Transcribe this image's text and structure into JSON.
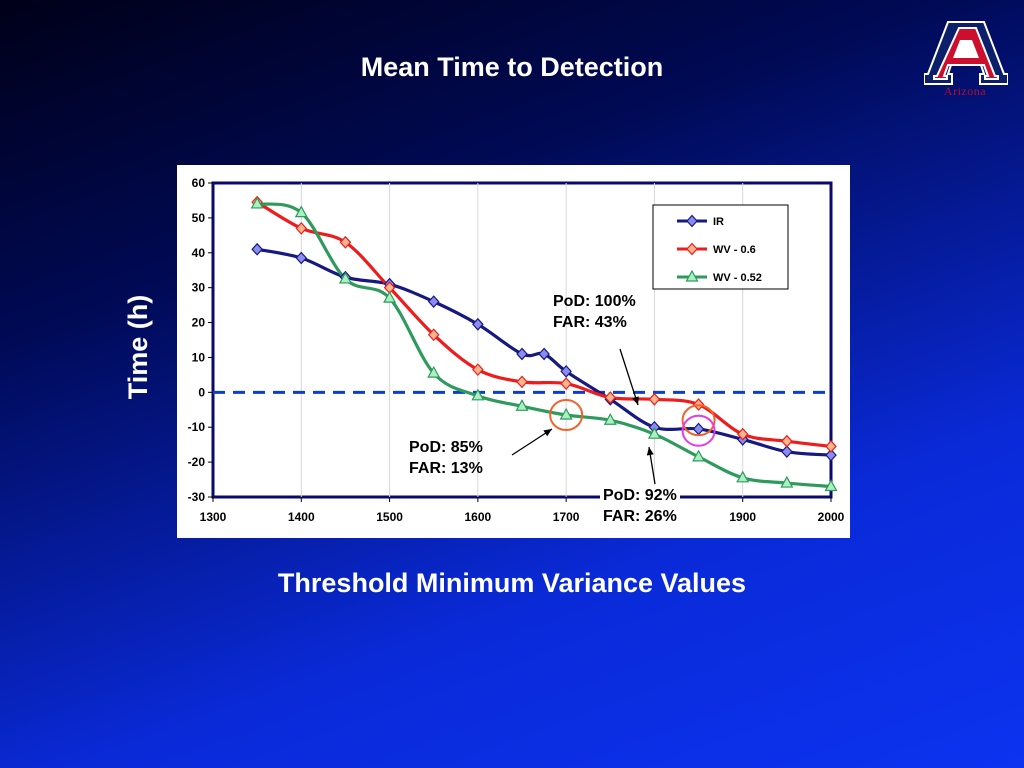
{
  "slide": {
    "title": "Mean Time to Detection",
    "logo_text": "Arizona"
  },
  "colors": {
    "ir": "#16197f",
    "wv06": "#ee1c1c",
    "wv052": "#2e9a5c",
    "zero_line": "#0b3fc8",
    "circle_orange": "#f0622a",
    "circle_magenta": "#e23ce6"
  },
  "chart_data": {
    "type": "line",
    "title": "Mean Time to Detection",
    "xlabel": "Threshold Minimum Variance Values",
    "ylabel": "Time (h)",
    "xlim": [
      1300,
      2000
    ],
    "ylim": [
      -30,
      60
    ],
    "x_ticks": [
      "1300",
      "1400",
      "1500",
      "1600",
      "1700",
      "1800",
      "1900",
      "2000"
    ],
    "y_ticks": [
      "60",
      "50",
      "40",
      "30",
      "20",
      "10",
      "0",
      "-10",
      "-20",
      "-30"
    ],
    "grid": true,
    "legend_position": "top-right",
    "reference_line": {
      "y": 0,
      "style": "dashed"
    },
    "series": [
      {
        "name": "IR",
        "marker": "diamond",
        "x": [
          1350,
          1400,
          1450,
          1500,
          1550,
          1600,
          1650,
          1675,
          1700,
          1750,
          1800,
          1850,
          1900,
          1950,
          2000
        ],
        "y": [
          41,
          38.5,
          33,
          31,
          26,
          19.5,
          11,
          11,
          6,
          -2,
          -10,
          -10.5,
          -13.5,
          -17,
          -18
        ]
      },
      {
        "name": "WV - 0.6",
        "marker": "diamond",
        "x": [
          1350,
          1400,
          1450,
          1500,
          1550,
          1600,
          1650,
          1700,
          1750,
          1800,
          1850,
          1900,
          1950,
          2000
        ],
        "y": [
          54.5,
          47,
          43,
          30,
          16.5,
          6.5,
          3,
          2.5,
          -1.5,
          -2,
          -3.5,
          -12,
          -14,
          -15.5
        ]
      },
      {
        "name": "WV - 0.52",
        "marker": "triangle",
        "x": [
          1350,
          1400,
          1450,
          1500,
          1550,
          1600,
          1650,
          1700,
          1750,
          1800,
          1850,
          1900,
          1950,
          2000
        ],
        "y": [
          54,
          51.5,
          32.5,
          27,
          5.5,
          -1,
          -4,
          -6.5,
          -8,
          -12,
          -18.5,
          -24.5,
          -26,
          -27
        ]
      }
    ],
    "annotations": [
      {
        "line1": "PoD: 100%",
        "line2": "FAR: 43%"
      },
      {
        "line1": "PoD: 85%",
        "line2": "FAR: 13%"
      },
      {
        "line1": "PoD: 92%",
        "line2": "FAR: 26%"
      }
    ]
  }
}
